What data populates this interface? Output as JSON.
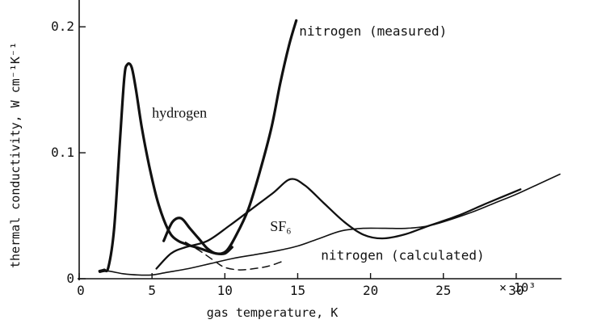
{
  "chart_data": {
    "type": "line",
    "xlabel": "gas temperature, K",
    "ylabel": "thermal conductivity, W cm⁻¹K⁻¹",
    "x_multiplier_label": "× 10³",
    "xlim": [
      0,
      33
    ],
    "ylim": [
      0,
      0.22
    ],
    "x_ticks": [
      "0",
      "5",
      "10",
      "15",
      "20",
      "25",
      "30"
    ],
    "x_tick_values": [
      0,
      5,
      10,
      15,
      20,
      25,
      30
    ],
    "y_ticks": [
      "0",
      "0.1",
      "0.2"
    ],
    "y_tick_values": [
      0,
      0.1,
      0.2
    ],
    "series": [
      {
        "name": "hydrogen",
        "style": "thick",
        "x": [
          1.4,
          1.7,
          2.0,
          2.4,
          2.8,
          3.1,
          3.3,
          3.6,
          3.9,
          4.3,
          4.8,
          5.3,
          5.8,
          6.3,
          6.8,
          7.2,
          7.7,
          8.3,
          8.8,
          9.4,
          10.0,
          10.5
        ],
        "y": [
          0.006,
          0.007,
          0.009,
          0.04,
          0.11,
          0.16,
          0.17,
          0.168,
          0.15,
          0.12,
          0.09,
          0.065,
          0.047,
          0.035,
          0.03,
          0.028,
          0.026,
          0.024,
          0.022,
          0.02,
          0.02,
          0.025
        ]
      },
      {
        "name": "nitrogen (measured)",
        "style": "thick",
        "x": [
          5.8,
          6.4,
          7.0,
          7.6,
          8.2,
          8.8,
          9.4,
          10.1,
          10.8,
          11.6,
          12.4,
          13.2,
          13.8,
          14.4,
          14.9
        ],
        "y": [
          0.03,
          0.045,
          0.048,
          0.04,
          0.032,
          0.024,
          0.02,
          0.022,
          0.035,
          0.055,
          0.085,
          0.12,
          0.155,
          0.185,
          0.205
        ]
      },
      {
        "name": "SF₆",
        "style": "medium",
        "x": [
          5.3,
          6.3,
          7.3,
          8.8,
          10.3,
          11.8,
          13.3,
          14.5,
          15.5,
          16.8,
          18.2,
          19.5,
          20.8,
          22.3,
          24.0,
          26.0,
          28.0,
          30.3
        ],
        "y": [
          0.008,
          0.02,
          0.025,
          0.03,
          0.042,
          0.055,
          0.068,
          0.079,
          0.074,
          0.06,
          0.045,
          0.035,
          0.032,
          0.035,
          0.042,
          0.05,
          0.06,
          0.071
        ]
      },
      {
        "name": "nitrogen (calculated)",
        "style": "thin",
        "x": [
          1.4,
          2.0,
          3.0,
          4.0,
          5.0,
          6.0,
          7.5,
          9.0,
          10.5,
          12.0,
          13.5,
          15.0,
          16.5,
          18.0,
          19.5,
          21.0,
          22.5,
          24.0,
          25.5,
          27.0,
          28.5,
          30.0,
          31.5,
          33.0
        ],
        "y": [
          0.005,
          0.006,
          0.004,
          0.003,
          0.003,
          0.005,
          0.008,
          0.012,
          0.016,
          0.019,
          0.022,
          0.026,
          0.032,
          0.038,
          0.04,
          0.04,
          0.04,
          0.042,
          0.047,
          0.053,
          0.06,
          0.067,
          0.075,
          0.083
        ]
      },
      {
        "name": "dashed branch",
        "style": "dashed",
        "x": [
          7.3,
          8.3,
          9.3,
          10.0,
          11.0,
          12.0,
          13.0,
          14.0
        ],
        "y": [
          0.029,
          0.022,
          0.014,
          0.009,
          0.007,
          0.008,
          0.01,
          0.014
        ]
      }
    ],
    "annotations": [
      {
        "text": "nitrogen (measured)",
        "x": 15.1,
        "y": 0.193
      },
      {
        "text": "hydrogen",
        "x": 5.0,
        "y": 0.128
      },
      {
        "text": "SF₆",
        "x": 13.1,
        "y": 0.038
      },
      {
        "text": "nitrogen (calculated)",
        "x": 16.6,
        "y": 0.015
      }
    ]
  }
}
